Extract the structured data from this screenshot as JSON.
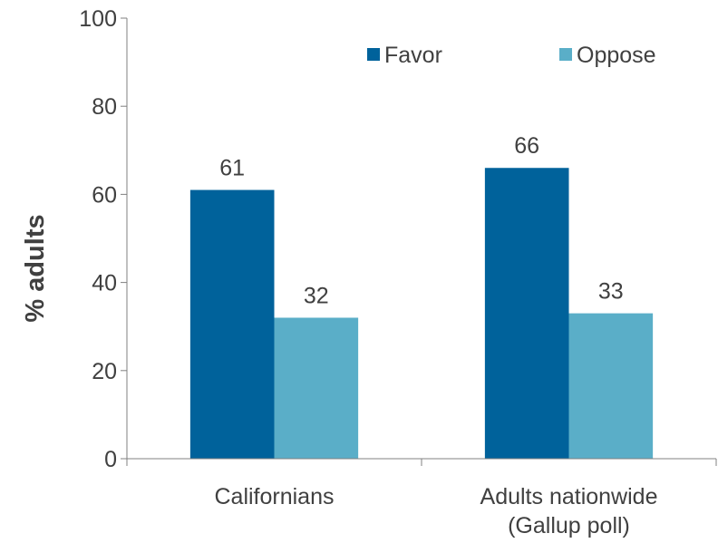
{
  "chart_data": {
    "type": "bar",
    "categories": [
      "Californians",
      "Adults nationwide\n(Gallup poll)"
    ],
    "series": [
      {
        "name": "Favor",
        "values": [
          61,
          66
        ],
        "color": "#00629b"
      },
      {
        "name": "Oppose",
        "values": [
          32,
          33
        ],
        "color": "#5aaec8"
      }
    ],
    "title": "",
    "xlabel": "",
    "ylabel": "% adults",
    "ylim": [
      0,
      100
    ],
    "yticks": [
      0,
      20,
      40,
      60,
      80,
      100
    ],
    "grid": false,
    "legend_position": "top-right",
    "axis_color": "#808080",
    "text_color": "#404040"
  }
}
